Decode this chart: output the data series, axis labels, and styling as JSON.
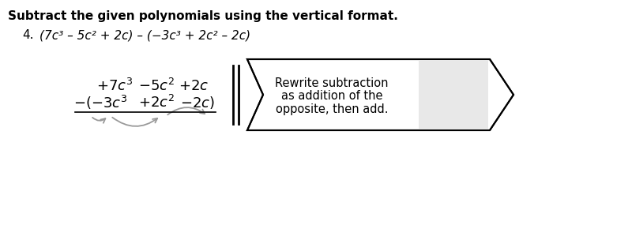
{
  "title": "Subtract the given polynomials using the vertical format.",
  "problem_num": "4.",
  "problem_expr": "(7c³ – 5c² + 2c) – (−3c³ + 2c² – 2c)",
  "arrow_text_line1": "Rewrite subtraction",
  "arrow_text_line2": "as addition of the",
  "arrow_text_line3": "opposite, then add.",
  "bg_color": "#ffffff",
  "arrow_fill": "#ffffff",
  "gray_fill": "#e8e8e8",
  "text_color": "#000000",
  "title_fontsize": 11,
  "body_fontsize": 11,
  "math_fontsize": 13
}
